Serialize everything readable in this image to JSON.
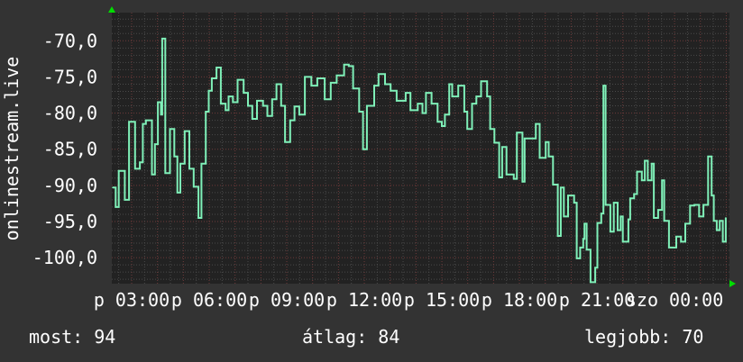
{
  "chart_data": {
    "type": "line",
    "title": "",
    "ylabel": "onlinestream.live",
    "xlabel": "",
    "ylim": [
      -103.6,
      -66.1
    ],
    "xlim": [
      "02:14",
      "szo 02:08"
    ],
    "y_ticks": [
      -70,
      -75,
      -80,
      -85,
      -90,
      -95,
      -100
    ],
    "y_tick_labels": [
      "-70,0",
      "-75,0",
      "-80,0",
      "-85,0",
      "-90,0",
      "-95,0",
      "-100,0"
    ],
    "x_tick_labels": [
      "p 03:00",
      "p 06:00",
      "p 09:00",
      "p 12:00",
      "p 15:00",
      "p 18:00",
      "p 21:00",
      "szo 00:00"
    ],
    "grid": true,
    "colors": {
      "background": "#333333",
      "plot": "#222222",
      "line": "#7ff0b8",
      "minor_grid": "#4a4a4a",
      "major_grid": "#6e3a3a",
      "arrow": "#00dd00",
      "text": "#ffffff"
    },
    "series": [
      {
        "x": [
          "02:16",
          "02:23",
          "02:30",
          "02:44",
          "02:54",
          "03:08",
          "03:19",
          "03:26",
          "03:33",
          "03:47",
          "03:54",
          "04:01",
          "04:08",
          "04:11",
          "04:18",
          "04:29",
          "04:39",
          "04:46",
          "04:53",
          "05:03",
          "05:14",
          "05:24",
          "05:35",
          "05:42",
          "05:52",
          "05:59",
          "06:06",
          "06:17",
          "06:27",
          "06:38",
          "06:45",
          "06:55",
          "07:06",
          "07:20",
          "07:30",
          "07:40",
          "07:51",
          "08:05",
          "08:15",
          "08:26",
          "08:36",
          "08:47",
          "08:56",
          "09:08",
          "09:18",
          "09:29",
          "09:42",
          "09:57",
          "10:11",
          "10:28",
          "10:42",
          "10:56",
          "11:13",
          "11:24",
          "11:34",
          "11:48",
          "11:57",
          "12:06",
          "12:23",
          "12:33",
          "12:48",
          "13:01",
          "13:15",
          "13:36",
          "13:47",
          "14:04",
          "14:15",
          "14:23",
          "14:36",
          "14:50",
          "15:00",
          "15:07",
          "15:17",
          "15:24",
          "15:38",
          "15:52",
          "15:59",
          "16:10",
          "16:20",
          "16:31",
          "16:45",
          "16:52",
          "17:02",
          "17:13",
          "17:20",
          "17:30",
          "17:47",
          "17:54",
          "18:07",
          "18:12",
          "18:33",
          "18:38",
          "18:47",
          "19:01",
          "19:08",
          "19:18",
          "19:29",
          "19:36",
          "19:43",
          "19:53",
          "20:07",
          "20:13",
          "20:21",
          "20:28",
          "20:31",
          "20:36",
          "20:45",
          "20:56",
          "21:01",
          "21:10",
          "21:15",
          "21:20",
          "21:31",
          "21:39",
          "21:48",
          "21:55",
          "22:00",
          "22:13",
          "22:17",
          "22:26",
          "22:33",
          "22:44",
          "22:51",
          "22:58",
          "23:07",
          "23:12",
          "23:22",
          "23:31",
          "23:36",
          "23:47",
          "00:04",
          "00:15",
          "00:25",
          "00:36",
          "00:46",
          "00:57",
          "01:07",
          "01:18",
          "01:26",
          "01:31",
          "01:38",
          "01:45",
          "01:52",
          "01:59"
        ],
        "values": [
          -90.3,
          -93,
          -88,
          -92,
          -81.2,
          -87.7,
          -86.8,
          -81.5,
          -81,
          -88.5,
          -84.3,
          -78.5,
          -80.2,
          -69.7,
          -88.3,
          -82.2,
          -86,
          -91,
          -87,
          -82.5,
          -87.7,
          -90.2,
          -94.5,
          -87,
          -79.8,
          -76.9,
          -75.2,
          -73.7,
          -78.7,
          -79.6,
          -77.7,
          -78.5,
          -75.4,
          -77.2,
          -79,
          -80.8,
          -78.3,
          -79,
          -80.4,
          -78.1,
          -76,
          -79,
          -84,
          -81,
          -79.1,
          -80.2,
          -75,
          -76.2,
          -75.2,
          -78.1,
          -75.8,
          -74.8,
          -73.3,
          -73.5,
          -76.6,
          -79.8,
          -85,
          -79,
          -76.2,
          -74.6,
          -76,
          -76.9,
          -78.3,
          -77.2,
          -79.6,
          -78.7,
          -80,
          -77.2,
          -78.7,
          -81.2,
          -81.8,
          -80.2,
          -76,
          -77.7,
          -76.2,
          -79.8,
          -82.2,
          -78.7,
          -77.7,
          -75.6,
          -77.7,
          -82.2,
          -84.1,
          -88.9,
          -84.7,
          -88.5,
          -89.1,
          -82.7,
          -89.5,
          -83.5,
          -83.5,
          -81.5,
          -86.2,
          -84,
          -86,
          -89.9,
          -97,
          -90.3,
          -94.3,
          -91.4,
          -92.4,
          -100.1,
          -98.6,
          -97.4,
          -95.3,
          -98.9,
          -103.4,
          -101.4,
          -95.2,
          -93.9,
          -76.2,
          -92.7,
          -96.4,
          -92.4,
          -96.2,
          -94.3,
          -97.8,
          -94.7,
          -91.8,
          -91.2,
          -88.1,
          -89.3,
          -86.6,
          -89.3,
          -87,
          -94.5,
          -93.4,
          -89.3,
          -94.9,
          -98.6,
          -97.1,
          -97.8,
          -95.3,
          -92.8,
          -92.7,
          -94.3,
          -92.7,
          -86,
          -91.4,
          -94.9,
          -96.2,
          -94.9,
          -97.8,
          -94.5
        ]
      }
    ]
  },
  "legend": {
    "current": "most: 94",
    "average": "átlag: 84",
    "max": "legjobb: 70"
  }
}
